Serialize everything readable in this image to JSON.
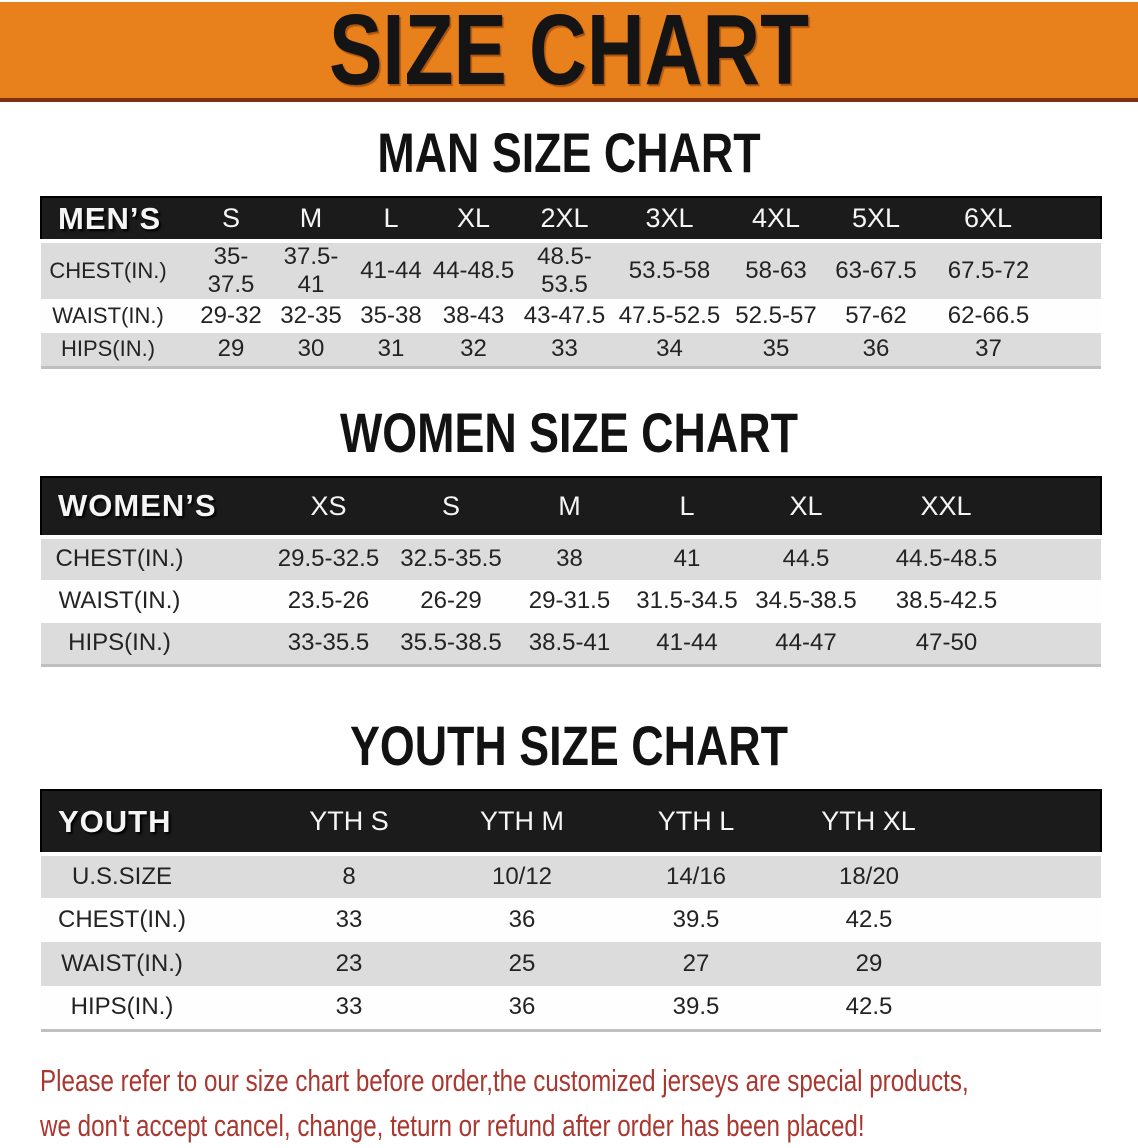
{
  "banner": {
    "title": "SIZE CHART",
    "bg_color": "#E8811B",
    "border_color": "#7E3012",
    "text_color": "#141414"
  },
  "sections": [
    {
      "heading": "MAN SIZE CHART",
      "table": {
        "header": [
          "MEN’S",
          "S",
          "M",
          "L",
          "XL",
          "2XL",
          "3XL",
          "4XL",
          "5XL",
          "6XL"
        ],
        "rows": [
          [
            "CHEST(IN.)",
            "35-37.5",
            "37.5-41",
            "41-44",
            "44-48.5",
            "48.5-53.5",
            "53.5-58",
            "58-63",
            "63-67.5",
            "67.5-72"
          ],
          [
            "WAIST(IN.)",
            "29-32",
            "32-35",
            "35-38",
            "38-43",
            "43-47.5",
            "47.5-52.5",
            "52.5-57",
            "57-62",
            "62-66.5"
          ],
          [
            "HIPS(IN.)",
            "29",
            "30",
            "31",
            "32",
            "33",
            "34",
            "35",
            "36",
            "37"
          ]
        ]
      }
    },
    {
      "heading": "WOMEN SIZE CHART",
      "table": {
        "header": [
          "WOMEN’S",
          "XS",
          "S",
          "M",
          "L",
          "XL",
          "XXL"
        ],
        "rows": [
          [
            "CHEST(IN.)",
            "29.5-32.5",
            "32.5-35.5",
            "38",
            "41",
            "44.5",
            "44.5-48.5"
          ],
          [
            "WAIST(IN.)",
            "23.5-26",
            "26-29",
            "29-31.5",
            "31.5-34.5",
            "34.5-38.5",
            "38.5-42.5"
          ],
          [
            "HIPS(IN.)",
            "33-35.5",
            "35.5-38.5",
            "38.5-41",
            "41-44",
            "44-47",
            "47-50"
          ]
        ]
      }
    },
    {
      "heading": "YOUTH SIZE CHART",
      "table": {
        "header": [
          "YOUTH",
          "YTH S",
          "YTH M",
          "YTH L",
          "YTH XL"
        ],
        "rows": [
          [
            "U.S.SIZE",
            "8",
            "10/12",
            "14/16",
            "18/20"
          ],
          [
            "CHEST(IN.)",
            "33",
            "36",
            "39.5",
            "42.5"
          ],
          [
            "WAIST(IN.)",
            "23",
            "25",
            "27",
            "29"
          ],
          [
            "HIPS(IN.)",
            "33",
            "36",
            "39.5",
            "42.5"
          ]
        ]
      }
    }
  ],
  "disclaimer": {
    "line1": "Please refer to our size chart before order,the customized jerseys are special products,",
    "line2": "we don't accept cancel, change, teturn or refund after order has been placed!",
    "color": "#A93831"
  },
  "colors": {
    "table_header_bg": "#1B1B1B",
    "row_gray": "#DCDCDC",
    "row_white": "#FEFEFE",
    "text_dark": "#232323"
  }
}
